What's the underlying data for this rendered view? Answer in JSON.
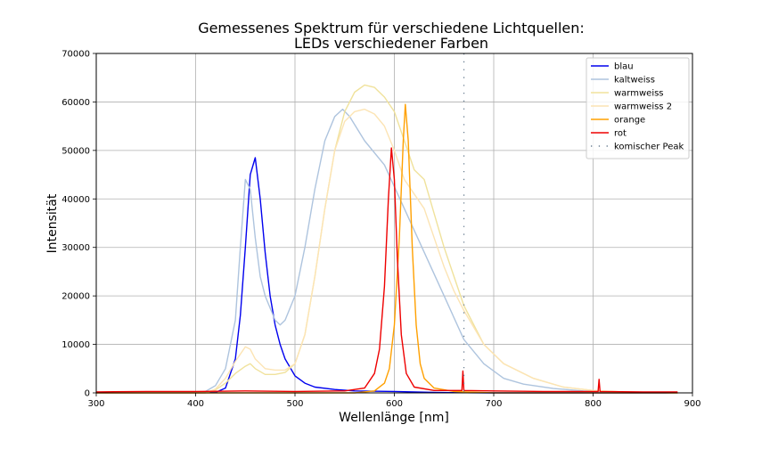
{
  "chart_data": {
    "type": "line",
    "title_line1": "Gemessenes Spektrum für verschiedene Lichtquellen:",
    "title_line2": "LEDs verschiedener Farben",
    "xlabel": "Wellenlänge [nm]",
    "ylabel": "Intensität",
    "xlim": [
      300,
      900
    ],
    "ylim": [
      0,
      70000
    ],
    "xticks": [
      300,
      400,
      500,
      600,
      700,
      800,
      900
    ],
    "yticks": [
      0,
      10000,
      20000,
      30000,
      40000,
      50000,
      60000,
      70000
    ],
    "grid": true,
    "legend_position": "top-right",
    "series": [
      {
        "name": "blau",
        "color": "#0000ee",
        "points": [
          [
            300,
            0
          ],
          [
            400,
            0
          ],
          [
            420,
            100
          ],
          [
            430,
            1000
          ],
          [
            440,
            7000
          ],
          [
            445,
            16000
          ],
          [
            450,
            30000
          ],
          [
            455,
            45000
          ],
          [
            460,
            48500
          ],
          [
            465,
            40000
          ],
          [
            470,
            29000
          ],
          [
            475,
            20000
          ],
          [
            480,
            14000
          ],
          [
            485,
            10000
          ],
          [
            490,
            7000
          ],
          [
            500,
            3500
          ],
          [
            510,
            2000
          ],
          [
            520,
            1200
          ],
          [
            540,
            700
          ],
          [
            560,
            400
          ],
          [
            600,
            300
          ],
          [
            640,
            100
          ],
          [
            700,
            0
          ],
          [
            885,
            0
          ]
        ]
      },
      {
        "name": "kaltweiss",
        "color": "#aec4de",
        "points": [
          [
            300,
            0
          ],
          [
            400,
            0
          ],
          [
            410,
            300
          ],
          [
            420,
            1500
          ],
          [
            430,
            5000
          ],
          [
            440,
            15000
          ],
          [
            445,
            30000
          ],
          [
            450,
            44000
          ],
          [
            455,
            42000
          ],
          [
            460,
            32000
          ],
          [
            465,
            24000
          ],
          [
            470,
            20000
          ],
          [
            480,
            15000
          ],
          [
            485,
            14000
          ],
          [
            490,
            15000
          ],
          [
            500,
            20000
          ],
          [
            510,
            30000
          ],
          [
            520,
            42000
          ],
          [
            530,
            52000
          ],
          [
            540,
            57000
          ],
          [
            548,
            58500
          ],
          [
            555,
            57000
          ],
          [
            570,
            52000
          ],
          [
            590,
            47000
          ],
          [
            610,
            38000
          ],
          [
            630,
            29000
          ],
          [
            650,
            20000
          ],
          [
            670,
            11000
          ],
          [
            690,
            6000
          ],
          [
            710,
            3000
          ],
          [
            730,
            1800
          ],
          [
            760,
            900
          ],
          [
            790,
            400
          ],
          [
            820,
            200
          ],
          [
            885,
            0
          ]
        ]
      },
      {
        "name": "warmweiss",
        "color": "#f0e29c",
        "points": [
          [
            300,
            0
          ],
          [
            410,
            0
          ],
          [
            420,
            600
          ],
          [
            430,
            2000
          ],
          [
            440,
            4000
          ],
          [
            450,
            5500
          ],
          [
            455,
            6000
          ],
          [
            460,
            5000
          ],
          [
            470,
            3800
          ],
          [
            480,
            3800
          ],
          [
            490,
            4200
          ],
          [
            500,
            6000
          ],
          [
            510,
            12000
          ],
          [
            520,
            24000
          ],
          [
            530,
            38000
          ],
          [
            540,
            50000
          ],
          [
            550,
            58000
          ],
          [
            560,
            62000
          ],
          [
            570,
            63500
          ],
          [
            580,
            63000
          ],
          [
            590,
            61000
          ],
          [
            600,
            58000
          ],
          [
            610,
            52000
          ],
          [
            620,
            46000
          ],
          [
            630,
            44000
          ],
          [
            640,
            37000
          ],
          [
            650,
            30000
          ],
          [
            660,
            24000
          ],
          [
            670,
            18000
          ],
          [
            690,
            10000
          ],
          [
            710,
            6000
          ],
          [
            740,
            3000
          ],
          [
            770,
            1200
          ],
          [
            800,
            500
          ],
          [
            830,
            200
          ],
          [
            885,
            0
          ]
        ]
      },
      {
        "name": "warmweiss 2",
        "color": "#fce4b4",
        "points": [
          [
            300,
            0
          ],
          [
            410,
            0
          ],
          [
            420,
            800
          ],
          [
            430,
            3000
          ],
          [
            440,
            6500
          ],
          [
            450,
            9500
          ],
          [
            455,
            9000
          ],
          [
            460,
            7000
          ],
          [
            470,
            5000
          ],
          [
            480,
            4700
          ],
          [
            490,
            4700
          ],
          [
            500,
            6000
          ],
          [
            510,
            12000
          ],
          [
            520,
            24000
          ],
          [
            530,
            38000
          ],
          [
            540,
            50000
          ],
          [
            550,
            56000
          ],
          [
            560,
            58000
          ],
          [
            570,
            58500
          ],
          [
            580,
            57500
          ],
          [
            590,
            55000
          ],
          [
            600,
            50000
          ],
          [
            610,
            44000
          ],
          [
            620,
            41000
          ],
          [
            630,
            38000
          ],
          [
            640,
            32000
          ],
          [
            650,
            26000
          ],
          [
            660,
            21000
          ],
          [
            670,
            17000
          ],
          [
            690,
            10000
          ],
          [
            710,
            6000
          ],
          [
            740,
            3000
          ],
          [
            770,
            1200
          ],
          [
            800,
            500
          ],
          [
            830,
            200
          ],
          [
            885,
            0
          ]
        ]
      },
      {
        "name": "orange",
        "color": "#ffa000",
        "points": [
          [
            300,
            0
          ],
          [
            560,
            0
          ],
          [
            580,
            400
          ],
          [
            590,
            2000
          ],
          [
            595,
            5000
          ],
          [
            600,
            14000
          ],
          [
            605,
            32000
          ],
          [
            609,
            52000
          ],
          [
            611,
            59500
          ],
          [
            614,
            52000
          ],
          [
            618,
            30000
          ],
          [
            622,
            14000
          ],
          [
            626,
            6000
          ],
          [
            630,
            3000
          ],
          [
            640,
            1000
          ],
          [
            660,
            300
          ],
          [
            700,
            0
          ],
          [
            885,
            0
          ]
        ]
      },
      {
        "name": "rot",
        "color": "#ee0000",
        "points": [
          [
            300,
            200
          ],
          [
            350,
            300
          ],
          [
            400,
            300
          ],
          [
            450,
            400
          ],
          [
            500,
            300
          ],
          [
            550,
            400
          ],
          [
            570,
            1000
          ],
          [
            580,
            4000
          ],
          [
            585,
            9000
          ],
          [
            590,
            22000
          ],
          [
            594,
            40000
          ],
          [
            597,
            50500
          ],
          [
            600,
            44000
          ],
          [
            603,
            28000
          ],
          [
            607,
            12000
          ],
          [
            612,
            4000
          ],
          [
            620,
            1200
          ],
          [
            640,
            500
          ],
          [
            668,
            500
          ],
          [
            669,
            4500
          ],
          [
            670,
            500
          ],
          [
            700,
            400
          ],
          [
            750,
            300
          ],
          [
            805,
            300
          ],
          [
            806,
            2800
          ],
          [
            807,
            300
          ],
          [
            850,
            200
          ],
          [
            885,
            200
          ]
        ]
      },
      {
        "name": "komischer Peak",
        "color": "#6a7f92",
        "style": "dotted",
        "x": 670
      }
    ]
  }
}
